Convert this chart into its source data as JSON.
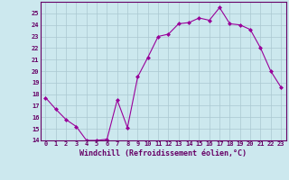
{
  "x": [
    0,
    1,
    2,
    3,
    4,
    5,
    6,
    7,
    8,
    9,
    10,
    11,
    12,
    13,
    14,
    15,
    16,
    17,
    18,
    19,
    20,
    21,
    22,
    23
  ],
  "y": [
    17.7,
    16.7,
    15.8,
    15.2,
    14.0,
    14.0,
    14.1,
    17.5,
    15.1,
    19.5,
    21.2,
    23.0,
    23.2,
    24.1,
    24.2,
    24.6,
    24.4,
    25.5,
    24.1,
    24.0,
    23.6,
    22.0,
    20.0,
    18.6
  ],
  "line_color": "#990099",
  "marker": "D",
  "marker_size": 2.0,
  "bg_color": "#cce8ee",
  "grid_color": "#aac8d0",
  "xlabel": "Windchill (Refroidissement éolien,°C)",
  "xlabel_color": "#660066",
  "tick_color": "#660066",
  "ylim": [
    14,
    26
  ],
  "yticks": [
    14,
    15,
    16,
    17,
    18,
    19,
    20,
    21,
    22,
    23,
    24,
    25
  ],
  "xlim": [
    -0.5,
    23.5
  ],
  "xticks": [
    0,
    1,
    2,
    3,
    4,
    5,
    6,
    7,
    8,
    9,
    10,
    11,
    12,
    13,
    14,
    15,
    16,
    17,
    18,
    19,
    20,
    21,
    22,
    23
  ],
  "xtick_labels": [
    "0",
    "1",
    "2",
    "3",
    "4",
    "5",
    "6",
    "7",
    "8",
    "9",
    "10",
    "11",
    "12",
    "13",
    "14",
    "15",
    "16",
    "17",
    "18",
    "19",
    "20",
    "21",
    "22",
    "23"
  ],
  "spine_color": "#660066",
  "xlabel_fontsize": 6.0,
  "tick_fontsize": 5.0
}
